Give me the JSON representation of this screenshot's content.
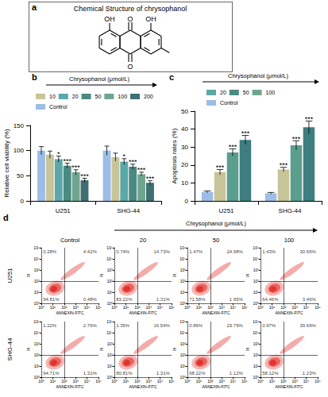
{
  "figure_a": {
    "label": "a",
    "title": "Chemical Structure of chrysophanol",
    "atoms": {
      "hydroxyl_left": "OH",
      "hydroxyl_right": "OH",
      "carbonyl_top": "O",
      "carbonyl_bottom": "O"
    }
  },
  "chart_data": [
    {
      "title": "b",
      "subtitle": "Chrysophanol (μmol/L)",
      "type": "bar",
      "ylabel": "Relative cell viability (%)",
      "categories": [
        "U251",
        "SHG-44"
      ],
      "ylim": [
        0,
        150
      ],
      "yticks": [
        0,
        50,
        100,
        150
      ],
      "grid": false,
      "legend": "top",
      "series": [
        {
          "name": "Control",
          "color": "#9dbde6",
          "values": [
            100,
            100
          ],
          "errors": [
            8,
            9
          ],
          "annotations": [
            null,
            null
          ]
        },
        {
          "name": "10",
          "color": "#c8c49a",
          "values": [
            92,
            87
          ],
          "errors": [
            7,
            8
          ],
          "annotations": [
            null,
            null
          ]
        },
        {
          "name": "20",
          "color": "#5aa8a8",
          "values": [
            83,
            78
          ],
          "errors": [
            6,
            6
          ],
          "annotations": [
            "*",
            "*"
          ]
        },
        {
          "name": "50",
          "color": "#4b8a80",
          "values": [
            70,
            68
          ],
          "errors": [
            5,
            5
          ],
          "annotations": [
            "***",
            "***"
          ]
        },
        {
          "name": "100",
          "color": "#6fa58f",
          "values": [
            57,
            53
          ],
          "errors": [
            5,
            4
          ],
          "annotations": [
            "***",
            "***"
          ]
        },
        {
          "name": "200",
          "color": "#3e6f73",
          "values": [
            41,
            36
          ],
          "errors": [
            4,
            4
          ],
          "annotations": [
            "***",
            "***"
          ]
        }
      ]
    },
    {
      "title": "c",
      "subtitle": "Chrysophanol (μmol/L)",
      "type": "bar",
      "ylabel": "Apoptosis rates (%)",
      "categories": [
        "U251",
        "SHG-44"
      ],
      "ylim": [
        0,
        50
      ],
      "yticks": [
        0,
        10,
        20,
        30,
        40,
        50
      ],
      "grid": false,
      "legend": "top",
      "series": [
        {
          "name": "Control",
          "color": "#9dbde6",
          "values": [
            5,
            4.2
          ],
          "errors": [
            0.5,
            0.5
          ],
          "annotations": [
            null,
            null
          ]
        },
        {
          "name": "20",
          "color": "#c8c49a",
          "values": [
            16,
            17.5
          ],
          "errors": [
            1.5,
            1.2
          ],
          "annotations": [
            "***",
            "***"
          ]
        },
        {
          "name": "50",
          "color": "#5a9e8e",
          "values": [
            27,
            31
          ],
          "errors": [
            2,
            2.5
          ],
          "annotations": [
            "***",
            "***"
          ]
        },
        {
          "name": "100",
          "color": "#3e7d80",
          "values": [
            34,
            41
          ],
          "errors": [
            2.5,
            3.5
          ],
          "annotations": [
            "***",
            "***"
          ]
        }
      ]
    }
  ],
  "figure_d": {
    "label": "d",
    "type": "scatter",
    "header": "Chrysophanol (μmol/L)",
    "columns": [
      "Control",
      "20",
      "50",
      "100"
    ],
    "rows": [
      "U251",
      "SHG-44"
    ],
    "xlabel": "ANNEXIN-FITC",
    "ylabel": "PI",
    "log": true,
    "color": "#e0302a",
    "xlim": [
      1,
      100000
    ],
    "ylim": [
      1,
      100000
    ],
    "xticks": [
      {
        "value": 1,
        "label": "10⁰"
      },
      {
        "value": 10,
        "label": "10¹"
      },
      {
        "value": 100,
        "label": "10²"
      },
      {
        "value": 1000,
        "label": "10³"
      },
      {
        "value": 10000,
        "label": "10⁴"
      },
      {
        "value": 100000,
        "label": "10⁵"
      }
    ],
    "yticks": [
      {
        "value": 1,
        "label": "10⁰"
      },
      {
        "value": 10,
        "label": "10¹"
      },
      {
        "value": 100,
        "label": "10²"
      },
      {
        "value": 1000,
        "label": "10³"
      },
      {
        "value": 10000,
        "label": "10⁴"
      },
      {
        "value": 100000,
        "label": "10⁵"
      }
    ],
    "gate": {
      "x": 100,
      "y": 100
    },
    "plots": [
      [
        {
          "values": [
            0.28,
            4.42,
            94.81,
            0.48
          ],
          "value_labels": [
            "0.28%",
            "4.42%",
            "94.81%",
            "0.48%"
          ]
        },
        {
          "values": [
            0.74,
            14.73,
            83.22,
            1.31
          ],
          "value_labels": [
            "0.74%",
            "14.73%",
            "83.22%",
            "1.31%"
          ]
        },
        {
          "values": [
            1.47,
            24.98,
            71.58,
            1.95
          ],
          "value_labels": [
            "1.47%",
            "24.98%",
            "71.58%",
            "1.95%"
          ]
        },
        {
          "values": [
            1.43,
            30.65,
            64.46,
            3.46
          ],
          "value_labels": [
            "1.43%",
            "30.65%",
            "64.46%",
            "3.46%"
          ]
        }
      ],
      [
        {
          "values": [
            1.22,
            2.76,
            94.71,
            1.31
          ],
          "value_labels": [
            "1.22%",
            "2.76%",
            "94.71%",
            "1.31%"
          ]
        },
        {
          "values": [
            1.35,
            16.54,
            80.81,
            1.31
          ],
          "value_labels": [
            "1.35%",
            "16.54%",
            "80.81%",
            "1.31%"
          ]
        },
        {
          "values": [
            0.86,
            29.79,
            68.22,
            1.12
          ],
          "value_labels": [
            "0.86%",
            "29.79%",
            "68.22%",
            "1.12%"
          ]
        },
        {
          "values": [
            0.97,
            39.69,
            58.12,
            1.23
          ],
          "value_labels": [
            "0.97%",
            "39.69%",
            "58.12%",
            "1.23%"
          ]
        }
      ]
    ]
  }
}
